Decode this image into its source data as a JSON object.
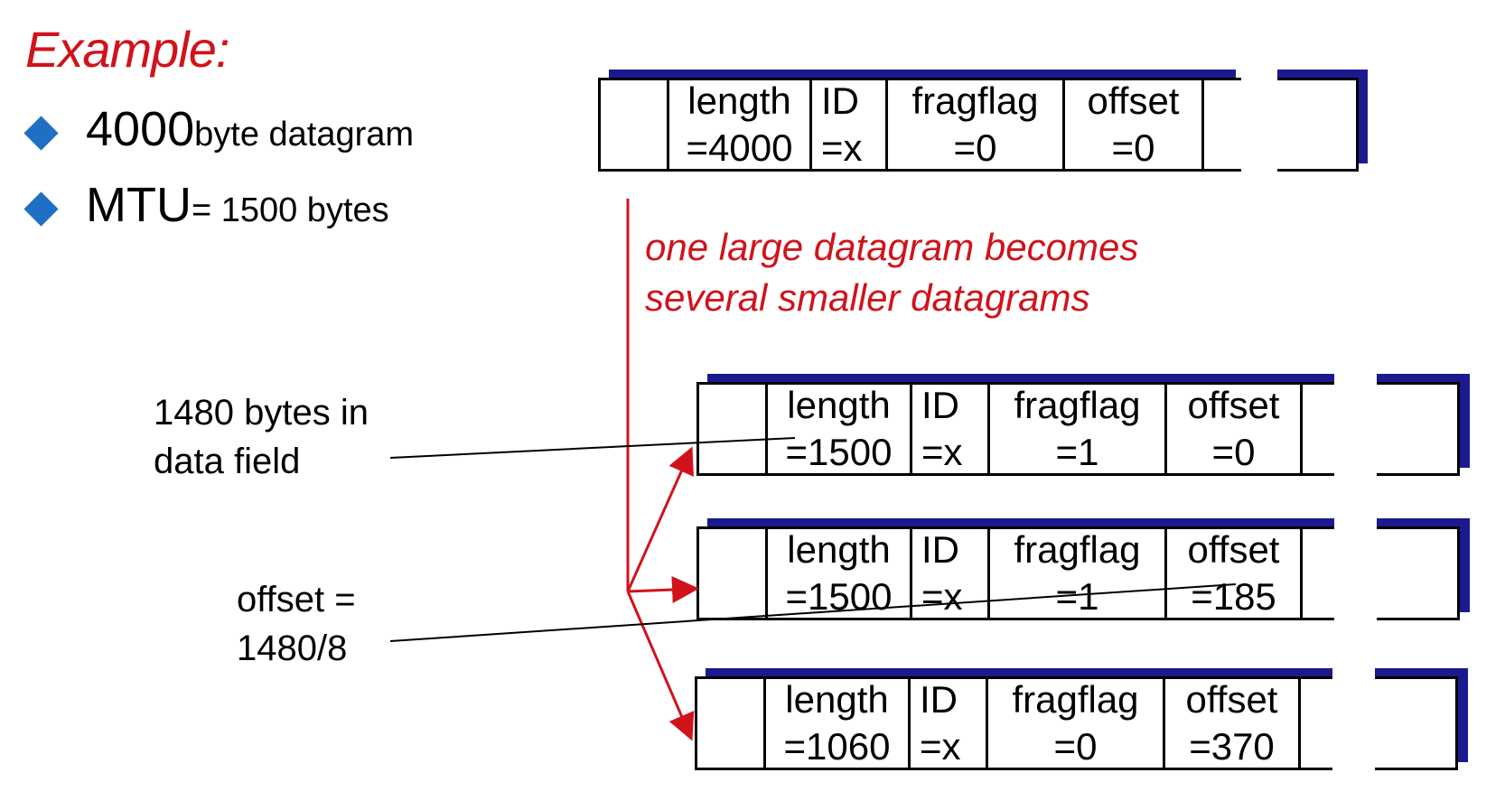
{
  "title": "Example:",
  "bullets": [
    {
      "big": "4000",
      "small": " byte datagram"
    },
    {
      "big": "MTU",
      "small": " = 1500 bytes"
    }
  ],
  "note": {
    "line1": "one large datagram becomes",
    "line2": "several smaller datagrams"
  },
  "callouts": {
    "data_field": {
      "line1": "1480 bytes in",
      "line2": "data field"
    },
    "offset": {
      "line1": "offset =",
      "line2": "1480/8"
    }
  },
  "original": {
    "length": "length",
    "length_val": "=4000",
    "id": "ID",
    "id_val": "=x",
    "flag": "fragflag",
    "flag_val": "=0",
    "offset": "offset",
    "offset_val": "=0"
  },
  "fragments": [
    {
      "length": "length",
      "length_val": "=1500",
      "id": "ID",
      "id_val": "=x",
      "flag": "fragflag",
      "flag_val": "=1",
      "offset": "offset",
      "offset_val": "=0"
    },
    {
      "length": "length",
      "length_val": "=1500",
      "id": "ID",
      "id_val": "=x",
      "flag": "fragflag",
      "flag_val": "=1",
      "offset": "offset",
      "offset_val": "=185"
    },
    {
      "length": "length",
      "length_val": "=1060",
      "id": "ID",
      "id_val": "=x",
      "flag": "fragflag",
      "flag_val": "=0",
      "offset": "offset",
      "offset_val": "=370"
    }
  ],
  "colors": {
    "accent_red": "#d0131b",
    "bullet_blue": "#1f6fc5",
    "shadow_navy": "#1a1a8e"
  }
}
